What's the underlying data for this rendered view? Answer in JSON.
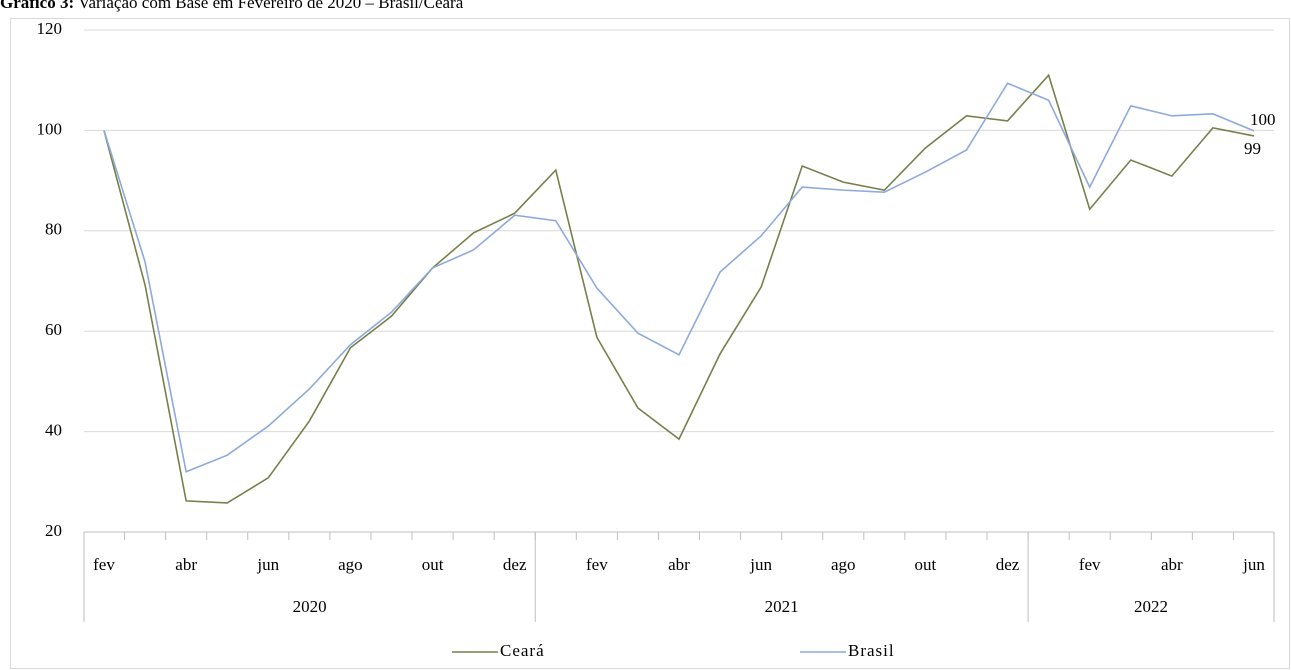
{
  "chart_data": {
    "type": "line",
    "title": "Gráfico 3:",
    "subtitle": "Variação com Base em Fevereiro de 2020 – Brasil/Ceará",
    "categories": [
      "fev",
      null,
      "abr",
      null,
      "jun",
      null,
      "ago",
      null,
      "out",
      null,
      "dez",
      null,
      "fev",
      null,
      "abr",
      null,
      "jun",
      null,
      "ago",
      null,
      "out",
      null,
      "dez",
      null,
      "fev",
      null,
      "abr",
      null,
      "jun"
    ],
    "groups": [
      {
        "label": "2020",
        "count": 11
      },
      {
        "label": "2021",
        "count": 12
      },
      {
        "label": "2022",
        "count": 6
      }
    ],
    "series": [
      {
        "name": "Ceará",
        "color": "#76804a",
        "values": [
          100,
          69.2,
          26.2,
          25.8,
          30.8,
          42.1,
          56.7,
          63,
          72.6,
          79.6,
          83.5,
          92.1,
          58.8,
          44.7,
          38.5,
          55.5,
          68.8,
          92.9,
          89.7,
          88.1,
          96.5,
          102.9,
          101.9,
          111,
          84.3,
          94.1,
          90.9,
          100.5,
          98.9
        ],
        "value_labels": [
          null,
          null,
          null,
          null,
          null,
          null,
          null,
          null,
          null,
          null,
          null,
          null,
          null,
          null,
          null,
          null,
          null,
          null,
          null,
          null,
          null,
          null,
          null,
          null,
          null,
          null,
          null,
          null,
          "99"
        ]
      },
      {
        "name": "Brasil",
        "color": "#8eaadb",
        "values": [
          100,
          73.8,
          32,
          35.3,
          41.1,
          48.5,
          57.3,
          63.8,
          72.6,
          76.2,
          83.1,
          82,
          68.6,
          59.6,
          55.3,
          71.8,
          79,
          88.7,
          88.1,
          87.7,
          91.7,
          96.1,
          109.4,
          106,
          88.7,
          104.9,
          102.9,
          103.3,
          99.9
        ],
        "value_labels": [
          null,
          null,
          null,
          null,
          null,
          null,
          null,
          null,
          null,
          null,
          null,
          null,
          null,
          null,
          null,
          null,
          null,
          null,
          null,
          null,
          null,
          null,
          null,
          null,
          null,
          null,
          null,
          null,
          "100"
        ]
      }
    ],
    "ylim": [
      20,
      120
    ],
    "yticks": [
      20,
      40,
      60,
      80,
      100,
      120
    ],
    "grid": true
  }
}
